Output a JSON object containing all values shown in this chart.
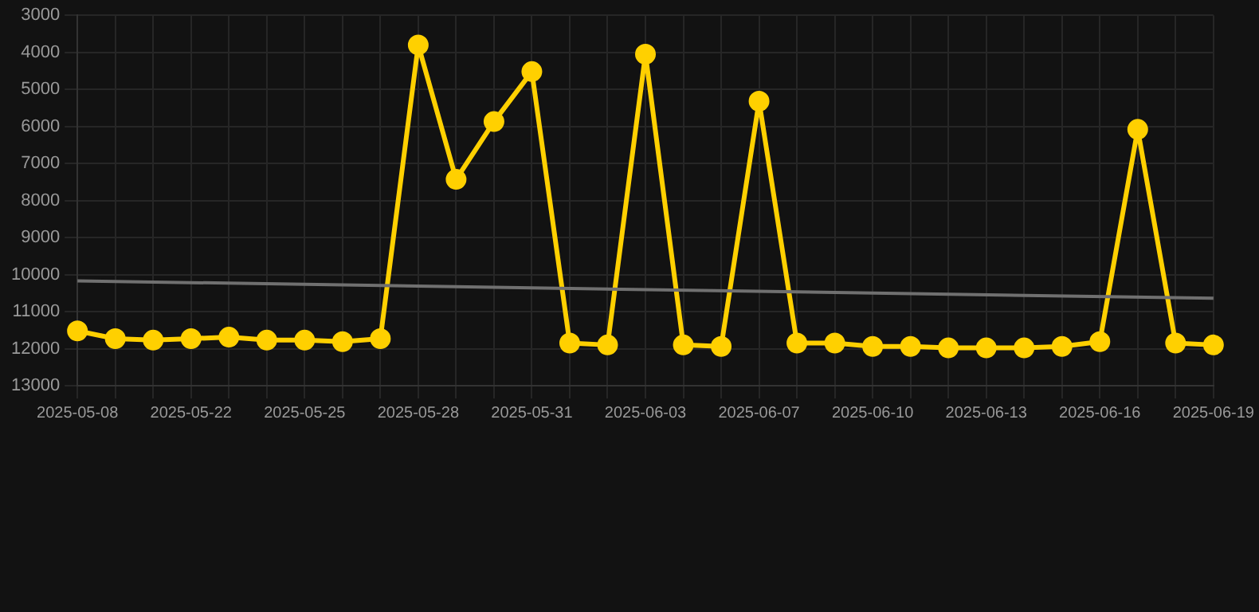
{
  "chart_data": {
    "type": "line",
    "categories": [
      "2025-05-08",
      null,
      null,
      "2025-05-22",
      null,
      null,
      "2025-05-25",
      null,
      null,
      "2025-05-28",
      null,
      null,
      "2025-05-31",
      null,
      null,
      "2025-06-03",
      null,
      null,
      "2025-06-07",
      null,
      null,
      "2025-06-10",
      null,
      null,
      "2025-06-13",
      null,
      null,
      "2025-06-16",
      null,
      null,
      "2025-06-19"
    ],
    "series": [
      {
        "color": "#ffd000",
        "marker": "circle",
        "values": [
          11520,
          11730,
          11770,
          11730,
          11690,
          11770,
          11770,
          11810,
          11730,
          3800,
          7430,
          5870,
          4520,
          11850,
          11900,
          4050,
          11900,
          11940,
          5320,
          11850,
          11850,
          11940,
          11940,
          11980,
          11980,
          11980,
          11940,
          11810,
          6080,
          11850,
          11900
        ]
      },
      {
        "color": "#707070",
        "marker": "none",
        "values": [
          10170,
          null,
          null,
          null,
          null,
          null,
          null,
          null,
          null,
          null,
          null,
          null,
          null,
          null,
          null,
          null,
          null,
          null,
          null,
          null,
          null,
          null,
          null,
          null,
          null,
          null,
          null,
          null,
          null,
          null,
          10640
        ]
      }
    ],
    "ylim": [
      13000,
      3000
    ],
    "yticks": [
      3000,
      4000,
      5000,
      6000,
      7000,
      8000,
      9000,
      10000,
      11000,
      12000,
      13000
    ],
    "grid": true,
    "legend": false,
    "line_style": "solid"
  }
}
